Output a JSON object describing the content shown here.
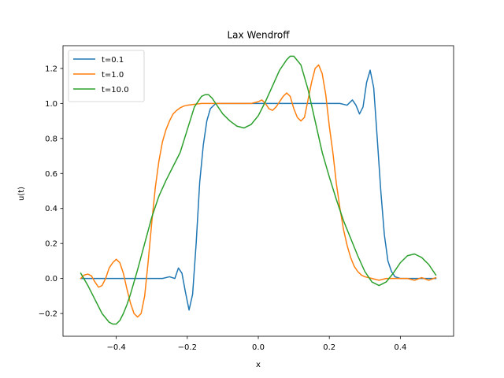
{
  "chart_data": {
    "type": "line",
    "title": "Lax Wendroff",
    "xlabel": "x",
    "ylabel": "u(t)",
    "xlim": [
      -0.55,
      0.55
    ],
    "ylim": [
      -0.33,
      1.33
    ],
    "xticks": [
      -0.4,
      -0.2,
      0.0,
      0.2,
      0.4
    ],
    "xtick_labels": [
      "−0.4",
      "−0.2",
      "0.0",
      "0.2",
      "0.4"
    ],
    "yticks": [
      -0.2,
      0.0,
      0.2,
      0.4,
      0.6,
      0.8,
      1.0,
      1.2
    ],
    "ytick_labels": [
      "−0.2",
      "0.0",
      "0.2",
      "0.4",
      "0.6",
      "0.8",
      "1.0",
      "1.2"
    ],
    "grid": false,
    "legend_position": "top-left",
    "series": [
      {
        "name": "t=0.1",
        "color": "#1f77b4",
        "x": [
          -0.5,
          -0.45,
          -0.4,
          -0.35,
          -0.3,
          -0.27,
          -0.25,
          -0.235,
          -0.225,
          -0.215,
          -0.205,
          -0.195,
          -0.185,
          -0.175,
          -0.165,
          -0.155,
          -0.145,
          -0.135,
          -0.12,
          -0.1,
          -0.05,
          0.0,
          0.05,
          0.1,
          0.15,
          0.2,
          0.23,
          0.25,
          0.265,
          0.275,
          0.285,
          0.295,
          0.305,
          0.315,
          0.325,
          0.335,
          0.345,
          0.355,
          0.365,
          0.375,
          0.385,
          0.4,
          0.45,
          0.5
        ],
        "y": [
          0.0,
          0.0,
          0.0,
          0.0,
          0.0,
          0.0,
          0.01,
          0.0,
          0.06,
          0.03,
          -0.08,
          -0.18,
          -0.09,
          0.2,
          0.55,
          0.76,
          0.9,
          0.97,
          1.0,
          1.0,
          1.0,
          1.0,
          1.0,
          1.0,
          1.0,
          1.0,
          1.0,
          0.99,
          1.02,
          0.99,
          0.94,
          0.98,
          1.12,
          1.19,
          1.09,
          0.8,
          0.5,
          0.25,
          0.1,
          0.04,
          0.01,
          0.0,
          0.0,
          0.0
        ]
      },
      {
        "name": "t=1.0",
        "color": "#ff7f0e",
        "x": [
          -0.5,
          -0.49,
          -0.48,
          -0.47,
          -0.46,
          -0.45,
          -0.44,
          -0.43,
          -0.42,
          -0.41,
          -0.4,
          -0.39,
          -0.38,
          -0.37,
          -0.36,
          -0.35,
          -0.34,
          -0.33,
          -0.32,
          -0.31,
          -0.3,
          -0.29,
          -0.28,
          -0.27,
          -0.26,
          -0.25,
          -0.24,
          -0.23,
          -0.22,
          -0.21,
          -0.2,
          -0.18,
          -0.16,
          -0.14,
          -0.12,
          -0.1,
          -0.08,
          -0.06,
          -0.04,
          -0.02,
          -0.01,
          0.0,
          0.01,
          0.02,
          0.03,
          0.04,
          0.05,
          0.06,
          0.07,
          0.08,
          0.09,
          0.1,
          0.11,
          0.12,
          0.13,
          0.14,
          0.15,
          0.16,
          0.17,
          0.18,
          0.19,
          0.2,
          0.21,
          0.22,
          0.23,
          0.24,
          0.25,
          0.26,
          0.27,
          0.28,
          0.29,
          0.3,
          0.31,
          0.32,
          0.33,
          0.34,
          0.35,
          0.36,
          0.38,
          0.4,
          0.42,
          0.44,
          0.46,
          0.48,
          0.5
        ],
        "y": [
          0.0,
          0.02,
          0.025,
          0.015,
          -0.02,
          -0.05,
          -0.04,
          0.0,
          0.06,
          0.09,
          0.11,
          0.09,
          0.03,
          -0.06,
          -0.14,
          -0.2,
          -0.22,
          -0.2,
          -0.1,
          0.1,
          0.32,
          0.52,
          0.67,
          0.78,
          0.85,
          0.9,
          0.94,
          0.96,
          0.975,
          0.985,
          0.99,
          0.995,
          1.0,
          1.0,
          1.0,
          1.0,
          1.0,
          1.0,
          1.0,
          1.0,
          1.005,
          1.01,
          1.02,
          1.0,
          0.97,
          0.96,
          0.98,
          1.01,
          1.04,
          1.06,
          1.04,
          0.97,
          0.92,
          0.9,
          0.92,
          1.02,
          1.12,
          1.2,
          1.22,
          1.17,
          1.05,
          0.87,
          0.72,
          0.54,
          0.4,
          0.28,
          0.19,
          0.12,
          0.07,
          0.04,
          0.02,
          0.01,
          0.005,
          0.0,
          -0.005,
          -0.01,
          -0.005,
          0.0,
          0.0,
          0.0,
          0.0,
          -0.01,
          0.005,
          -0.01,
          0.005
        ]
      },
      {
        "name": "t=10.0",
        "color": "#2ca02c",
        "x": [
          -0.5,
          -0.48,
          -0.46,
          -0.44,
          -0.42,
          -0.41,
          -0.4,
          -0.39,
          -0.38,
          -0.37,
          -0.36,
          -0.34,
          -0.32,
          -0.3,
          -0.28,
          -0.26,
          -0.24,
          -0.22,
          -0.2,
          -0.18,
          -0.16,
          -0.15,
          -0.14,
          -0.13,
          -0.12,
          -0.1,
          -0.08,
          -0.06,
          -0.04,
          -0.02,
          0.0,
          0.02,
          0.04,
          0.06,
          0.08,
          0.09,
          0.1,
          0.12,
          0.14,
          0.16,
          0.18,
          0.2,
          0.22,
          0.24,
          0.26,
          0.28,
          0.3,
          0.32,
          0.34,
          0.35,
          0.36,
          0.38,
          0.4,
          0.42,
          0.44,
          0.45,
          0.46,
          0.48,
          0.5
        ],
        "y": [
          0.03,
          -0.04,
          -0.12,
          -0.2,
          -0.25,
          -0.26,
          -0.26,
          -0.24,
          -0.2,
          -0.15,
          -0.09,
          0.05,
          0.2,
          0.35,
          0.47,
          0.56,
          0.64,
          0.72,
          0.85,
          0.98,
          1.04,
          1.05,
          1.05,
          1.03,
          1.0,
          0.94,
          0.9,
          0.87,
          0.86,
          0.88,
          0.93,
          1.01,
          1.1,
          1.19,
          1.25,
          1.27,
          1.27,
          1.22,
          1.08,
          0.9,
          0.72,
          0.58,
          0.45,
          0.33,
          0.23,
          0.13,
          0.04,
          -0.02,
          -0.04,
          -0.03,
          -0.02,
          0.03,
          0.09,
          0.13,
          0.14,
          0.13,
          0.12,
          0.08,
          0.02
        ]
      }
    ]
  }
}
